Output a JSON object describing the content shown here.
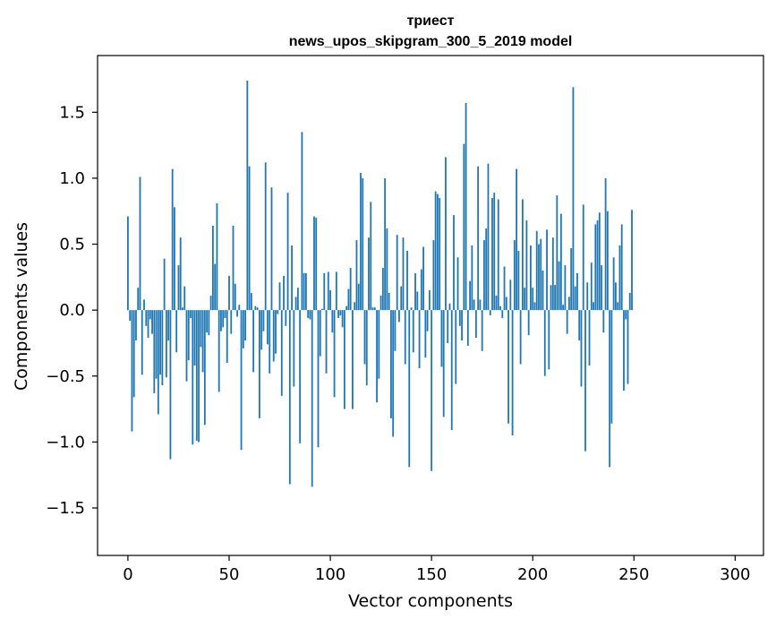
{
  "chart_data": {
    "type": "bar",
    "title_lines": [
      "триест",
      "news_upos_skipgram_300_5_2019 model"
    ],
    "xlabel": "Vector components",
    "ylabel": "Components values",
    "xlim": [
      -15,
      314
    ],
    "ylim": [
      -1.86,
      1.93
    ],
    "xticks": [
      0,
      50,
      100,
      150,
      200,
      250,
      300
    ],
    "xtick_labels": [
      "0",
      "50",
      "100",
      "150",
      "200",
      "250",
      "300"
    ],
    "yticks": [
      -1.5,
      -1.0,
      -0.5,
      0.0,
      0.5,
      1.0,
      1.5
    ],
    "ytick_labels": [
      "−1.5",
      "−1.0",
      "−0.5",
      "0.0",
      "0.5",
      "1.0",
      "1.5"
    ],
    "bar_color": "#1f77b4",
    "bar_width": 0.8,
    "grid": false,
    "values": [
      0.71,
      -0.08,
      -0.92,
      -0.66,
      -0.23,
      0.17,
      1.01,
      -0.49,
      0.08,
      -0.12,
      -0.21,
      -0.07,
      -0.18,
      -0.63,
      -0.52,
      -0.79,
      -0.49,
      -0.57,
      0.39,
      -0.51,
      -0.23,
      -1.13,
      1.07,
      0.78,
      -0.32,
      0.34,
      0.55,
      0.02,
      0.18,
      -0.54,
      -0.38,
      -0.06,
      -1.02,
      -0.42,
      -0.99,
      -1.0,
      -0.28,
      -0.47,
      -0.87,
      -0.17,
      -0.19,
      0.11,
      0.64,
      0.35,
      0.81,
      -0.62,
      -0.16,
      -0.13,
      -0.06,
      -0.4,
      0.26,
      -0.18,
      0.64,
      0.2,
      -0.05,
      0.04,
      -1.06,
      -0.29,
      -0.23,
      1.74,
      1.09,
      0.13,
      -0.47,
      0.03,
      0.02,
      -0.82,
      -0.3,
      -0.16,
      1.12,
      -0.26,
      -0.48,
      0.93,
      -0.39,
      -0.33,
      -0.03,
      0.21,
      -0.65,
      0.26,
      -0.12,
      0.89,
      -1.32,
      0.49,
      -0.58,
      0.1,
      0.17,
      -1.01,
      1.35,
      0.28,
      0.28,
      -0.06,
      -0.07,
      -1.34,
      0.71,
      0.7,
      -1.04,
      -0.35,
      0.01,
      0.28,
      -0.48,
      0.29,
      0.15,
      -0.17,
      -0.66,
      0.29,
      -0.06,
      -0.04,
      -0.13,
      -0.75,
      0.03,
      0.16,
      0.32,
      -0.75,
      0.06,
      0.53,
      0.2,
      1.04,
      1.0,
      -0.41,
      -0.57,
      0.55,
      0.82,
      0.02,
      0.02,
      -0.7,
      -0.52,
      0.11,
      0.32,
      1.0,
      0.62,
      0.13,
      -0.82,
      -0.96,
      -0.31,
      0.57,
      -0.09,
      0.18,
      0.55,
      -0.41,
      0.45,
      -1.19,
      0.02,
      -0.32,
      0.28,
      0.14,
      -0.44,
      0.31,
      0.48,
      -0.36,
      -0.16,
      0.15,
      -1.22,
      0.53,
      0.9,
      0.88,
      0.85,
      -0.43,
      -0.81,
      1.16,
      -0.25,
      0.05,
      -0.91,
      0.72,
      -0.56,
      0.4,
      -0.12,
      -0.23,
      1.26,
      1.57,
      -0.27,
      0.22,
      0.49,
      0.08,
      -0.21,
      1.09,
      0.08,
      -0.31,
      0.53,
      0.62,
      1.11,
      -0.04,
      0.85,
      0.89,
      0.11,
      0.84,
      0.03,
      -0.06,
      0.33,
      0.1,
      -0.86,
      0.23,
      -0.95,
      0.53,
      1.07,
      0.45,
      -0.41,
      0.84,
      0.17,
      0.68,
      -0.19,
      0.49,
      0.17,
      0.06,
      0.6,
      0.5,
      0.54,
      0.3,
      -0.5,
      0.61,
      -0.45,
      0.19,
      0.55,
      0.19,
      0.87,
      0.37,
      0.73,
      0.04,
      0.34,
      -0.18,
      0.1,
      0.47,
      1.69,
      0.18,
      0.28,
      -0.23,
      -0.58,
      0.8,
      -1.07,
      0.21,
      -0.42,
      0.36,
      0.06,
      0.65,
      0.68,
      0.74,
      0.34,
      -0.17,
      1.0,
      0.75,
      -1.19,
      -0.86,
      0.4,
      0.21,
      0.06,
      0.49,
      0.65,
      -0.61,
      -0.07,
      -0.56,
      0.13,
      0.76
    ]
  }
}
